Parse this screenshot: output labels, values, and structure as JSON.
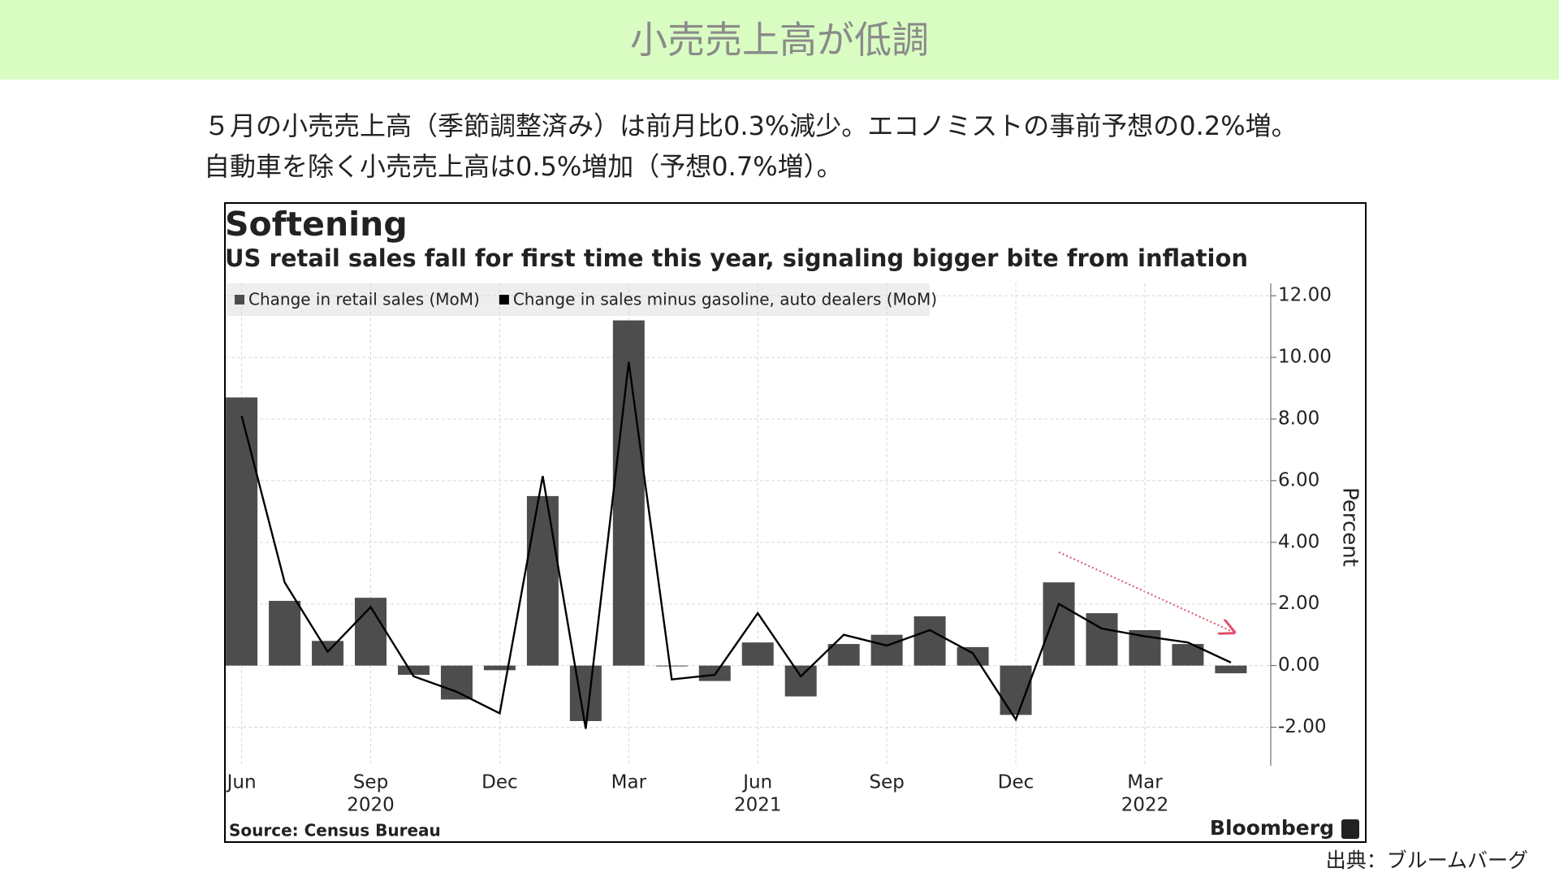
{
  "header": {
    "title": "小売売上高が低調"
  },
  "description": [
    "５月の小売売上高（季節調整済み）は前月比0.3%減少。エコノミストの事前予想の0.2%増。",
    "自動車を除く小売売上高は0.5%増加（予想0.7%増）。"
  ],
  "credit": "出典：ブルームバーグ",
  "chart_data": {
    "type": "bar",
    "title": "Softening",
    "subtitle": "US retail sales fall for first time this year, signaling bigger bite from inflation",
    "y_axis_label": "Percent",
    "source": "Source: Census Bureau",
    "brand": "Bloomberg",
    "categories": [
      "Jun",
      null,
      null,
      "Sep",
      null,
      null,
      "Dec",
      null,
      null,
      "Mar",
      null,
      null,
      "Jun",
      null,
      null,
      "Sep",
      null,
      null,
      "Dec",
      null,
      null,
      "Mar",
      null,
      null
    ],
    "year_labels": [
      null,
      null,
      null,
      "2020",
      null,
      null,
      null,
      null,
      null,
      null,
      null,
      null,
      "2021",
      null,
      null,
      null,
      null,
      null,
      null,
      null,
      null,
      "2022",
      null,
      null
    ],
    "series": [
      {
        "name": "Change in retail sales (MoM)",
        "type": "bar",
        "color": "#4d4d4d",
        "values": [
          8.7,
          2.1,
          0.8,
          2.2,
          -0.3,
          -1.1,
          -0.15,
          5.5,
          -1.8,
          11.2,
          0.0,
          -0.5,
          0.75,
          -1.0,
          0.7,
          1.0,
          1.6,
          0.6,
          -1.6,
          2.7,
          1.7,
          1.15,
          0.7,
          -0.25
        ]
      },
      {
        "name": "Change in sales minus gasoline, auto dealers (MoM)",
        "type": "line",
        "color": "#000000",
        "values": [
          8.1,
          2.7,
          0.45,
          1.9,
          -0.35,
          -0.85,
          -1.55,
          6.15,
          -2.05,
          9.85,
          -0.45,
          -0.3,
          1.7,
          -0.35,
          1.0,
          0.65,
          1.15,
          0.4,
          -1.75,
          2.0,
          1.2,
          0.95,
          0.75,
          0.1
        ]
      }
    ],
    "ylim": [
      -3.25,
      12.4
    ],
    "yticks": [
      {
        "value": -2,
        "label": "-2.00"
      },
      {
        "value": 0,
        "label": "0.00"
      },
      {
        "value": 2,
        "label": "2.00"
      },
      {
        "value": 4,
        "label": "4.00"
      },
      {
        "value": 6,
        "label": "6.00"
      },
      {
        "value": 8,
        "label": "8.00"
      },
      {
        "value": 10,
        "label": "10.00"
      },
      {
        "value": 12,
        "label": "12.00"
      }
    ],
    "grid": true
  }
}
